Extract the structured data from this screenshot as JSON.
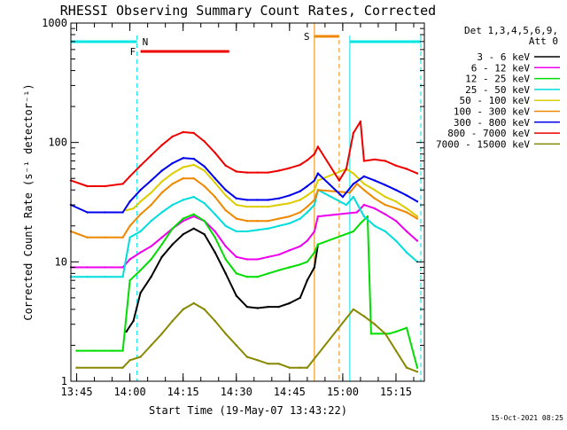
{
  "chart_data": {
    "type": "line",
    "title": "RHESSI Observing Summary Count Rates, Corrected",
    "xlabel": "Start Time (19-May-07 13:43:22)",
    "ylabel": "Corrected Count Rate (s⁻¹ detector⁻¹)",
    "y_scale": "log",
    "ylim": [
      1,
      1000
    ],
    "xlim": [
      "13:43:22",
      "15:23:00"
    ],
    "x_ticks": [
      "13:45",
      "14:00",
      "14:15",
      "14:30",
      "14:45",
      "15:00",
      "15:15"
    ],
    "y_ticks": [
      "1",
      "10",
      "100",
      "1000"
    ],
    "legend_header": [
      "Det 1,3,4,5,6,9,",
      "Att 0"
    ],
    "legend_position": "right",
    "footer_date": "15-Oct-2021 08:25",
    "colors": {
      "night": "#00e5e5",
      "flare": "#ee0000",
      "saa": "#ee8800"
    },
    "flags": {
      "night_label": "N",
      "flare_label": "F",
      "saa_label": "S",
      "night_intervals": [
        [
          "13:43:22",
          "14:02"
        ],
        [
          "15:02",
          "15:22"
        ]
      ],
      "flare_interval": [
        "14:03",
        "14:28"
      ],
      "saa_interval": [
        "14:52",
        "14:59"
      ],
      "saa_end_marker": "14:59"
    },
    "series": [
      {
        "name": "3 - 6 keV",
        "color": "#000000",
        "x": [
          "13:59",
          "14:01",
          "14:03",
          "14:06",
          "14:09",
          "14:12",
          "14:15",
          "14:18",
          "14:21",
          "14:24",
          "14:27",
          "14:30",
          "14:33",
          "14:36",
          "14:39",
          "14:42",
          "14:45",
          "14:48",
          "14:50",
          "14:52",
          "14:53"
        ],
        "values": [
          2.6,
          3.2,
          5.5,
          7.5,
          11,
          14,
          17,
          19,
          17,
          12,
          8,
          5.2,
          4.2,
          4.1,
          4.2,
          4.2,
          4.5,
          5,
          7,
          9,
          14
        ]
      },
      {
        "name": "6 - 12 keV",
        "color": "#ee00ee",
        "x": [
          "13:43:22",
          "13:48",
          "13:53",
          "13:58",
          "14:00",
          "14:03",
          "14:06",
          "14:09",
          "14:12",
          "14:15",
          "14:18",
          "14:21",
          "14:24",
          "14:27",
          "14:30",
          "14:33",
          "14:36",
          "14:39",
          "14:42",
          "14:45",
          "14:48",
          "14:50",
          "14:52",
          "14:53",
          "15:04",
          "15:06",
          "15:09",
          "15:12",
          "15:15",
          "15:18",
          "15:21"
        ],
        "values": [
          9,
          9,
          9,
          9,
          10.5,
          12,
          13.5,
          16,
          19,
          22,
          24,
          22,
          18,
          13.5,
          11,
          10.5,
          10.5,
          11,
          11.5,
          12.5,
          13.5,
          15,
          18,
          24,
          26,
          30,
          28,
          25,
          22,
          18,
          15
        ]
      },
      {
        "name": "12 - 25 keV",
        "color": "#00dd00",
        "x": [
          "13:45",
          "13:50",
          "13:55",
          "13:58",
          "14:00",
          "14:03",
          "14:06",
          "14:09",
          "14:12",
          "14:15",
          "14:18",
          "14:21",
          "14:24",
          "14:27",
          "14:30",
          "14:33",
          "14:36",
          "14:39",
          "14:42",
          "14:45",
          "14:48",
          "14:50",
          "14:52",
          "14:53",
          "15:03",
          "15:05",
          "15:07",
          "15:08",
          "15:10",
          "15:13",
          "15:15",
          "15:18",
          "15:21"
        ],
        "values": [
          1.8,
          1.8,
          1.8,
          1.8,
          7,
          8.5,
          10.5,
          14,
          19,
          23,
          25,
          22,
          16,
          10.5,
          8,
          7.5,
          7.5,
          8,
          8.5,
          9,
          9.5,
          10,
          12,
          14,
          18,
          21,
          24,
          2.5,
          2.5,
          2.5,
          2.6,
          2.8,
          1.3
        ]
      },
      {
        "name": "25 - 50 keV",
        "color": "#00dddd",
        "x": [
          "13:43:22",
          "13:48",
          "13:53",
          "13:58",
          "14:00",
          "14:03",
          "14:06",
          "14:09",
          "14:12",
          "14:15",
          "14:18",
          "14:21",
          "14:24",
          "14:27",
          "14:30",
          "14:33",
          "14:36",
          "14:39",
          "14:42",
          "14:45",
          "14:48",
          "14:50",
          "14:52",
          "14:53",
          "15:01",
          "15:03",
          "15:06",
          "15:09",
          "15:12",
          "15:15",
          "15:18",
          "15:21"
        ],
        "values": [
          7.5,
          7.5,
          7.5,
          7.5,
          16,
          18,
          22,
          26,
          30,
          33,
          35,
          31,
          25,
          20,
          18,
          18,
          18.5,
          19,
          20,
          21,
          23,
          26,
          30,
          40,
          30,
          35,
          24,
          20,
          18,
          15,
          12,
          10
        ]
      },
      {
        "name": "50 - 100 keV",
        "color": "#ddcc00",
        "x": [
          "13:59",
          "14:01",
          "14:03",
          "14:06",
          "14:09",
          "14:12",
          "14:15",
          "14:18",
          "14:21",
          "14:24",
          "14:27",
          "14:30",
          "14:33",
          "14:36",
          "14:39",
          "14:42",
          "14:45",
          "14:48",
          "14:50",
          "14:52",
          "14:53",
          "15:01",
          "15:03",
          "15:06",
          "15:09",
          "15:12",
          "15:15",
          "15:18",
          "15:21"
        ],
        "values": [
          27,
          28,
          32,
          38,
          47,
          55,
          62,
          65,
          58,
          46,
          36,
          30,
          29,
          29,
          29,
          30,
          31,
          33,
          36,
          40,
          48,
          60,
          55,
          45,
          40,
          35,
          32,
          28,
          24
        ]
      },
      {
        "name": "100 - 300 keV",
        "color": "#ee8800",
        "x": [
          "13:43:22",
          "13:48",
          "13:53",
          "13:58",
          "14:00",
          "14:03",
          "14:06",
          "14:09",
          "14:12",
          "14:15",
          "14:18",
          "14:21",
          "14:24",
          "14:27",
          "14:30",
          "14:33",
          "14:36",
          "14:39",
          "14:42",
          "14:45",
          "14:48",
          "14:50",
          "14:52",
          "14:53",
          "15:02",
          "15:04",
          "15:06",
          "15:09",
          "15:12",
          "15:15",
          "15:18",
          "15:21"
        ],
        "values": [
          18,
          16,
          16,
          16,
          20,
          25,
          30,
          38,
          45,
          50,
          50,
          43,
          35,
          27,
          23,
          22,
          22,
          22,
          23,
          24,
          26,
          29,
          33,
          40,
          38,
          45,
          40,
          34,
          30,
          28,
          26,
          23
        ]
      },
      {
        "name": "300 - 800 keV",
        "color": "#0000ee",
        "x": [
          "13:43:22",
          "13:48",
          "13:53",
          "13:58",
          "14:00",
          "14:03",
          "14:06",
          "14:09",
          "14:12",
          "14:15",
          "14:18",
          "14:21",
          "14:24",
          "14:27",
          "14:30",
          "14:33",
          "14:36",
          "14:39",
          "14:42",
          "14:45",
          "14:48",
          "14:50",
          "14:52",
          "14:53",
          "15:00",
          "15:03",
          "15:06",
          "15:09",
          "15:12",
          "15:15",
          "15:18",
          "15:21"
        ],
        "values": [
          30,
          26,
          26,
          26,
          32,
          40,
          48,
          58,
          67,
          74,
          73,
          63,
          50,
          40,
          34,
          33,
          33,
          33,
          34,
          36,
          39,
          43,
          48,
          55,
          35,
          45,
          52,
          48,
          44,
          40,
          36,
          32
        ]
      },
      {
        "name": "800 - 7000 keV",
        "color": "#ee0000",
        "x": [
          "13:43:22",
          "13:48",
          "13:53",
          "13:58",
          "14:00",
          "14:03",
          "14:06",
          "14:09",
          "14:12",
          "14:15",
          "14:18",
          "14:21",
          "14:24",
          "14:27",
          "14:30",
          "14:33",
          "14:36",
          "14:39",
          "14:42",
          "14:45",
          "14:48",
          "14:50",
          "14:52",
          "14:53",
          "14:59",
          "15:01",
          "15:03",
          "15:05",
          "15:06",
          "15:09",
          "15:12",
          "15:15",
          "15:18",
          "15:21"
        ],
        "values": [
          48,
          43,
          43,
          45,
          52,
          64,
          78,
          95,
          112,
          122,
          120,
          102,
          82,
          64,
          57,
          56,
          56,
          56,
          58,
          61,
          65,
          71,
          80,
          92,
          48,
          60,
          120,
          150,
          70,
          72,
          70,
          64,
          60,
          55
        ]
      },
      {
        "name": "7000 - 15000 keV",
        "color": "#888800",
        "x": [
          "13:45",
          "13:58",
          "14:00",
          "14:03",
          "14:06",
          "14:09",
          "14:12",
          "14:15",
          "14:18",
          "14:21",
          "14:24",
          "14:27",
          "14:30",
          "14:33",
          "14:36",
          "14:39",
          "14:42",
          "14:45",
          "14:48",
          "14:50",
          "15:03",
          "15:06",
          "15:09",
          "15:12",
          "15:15",
          "15:18",
          "15:21"
        ],
        "values": [
          1.3,
          1.3,
          1.5,
          1.6,
          2,
          2.5,
          3.2,
          4,
          4.5,
          4,
          3.2,
          2.5,
          2,
          1.6,
          1.5,
          1.4,
          1.4,
          1.3,
          1.3,
          1.3,
          4,
          3.5,
          3,
          2.5,
          1.8,
          1.3,
          1.2
        ]
      }
    ]
  }
}
